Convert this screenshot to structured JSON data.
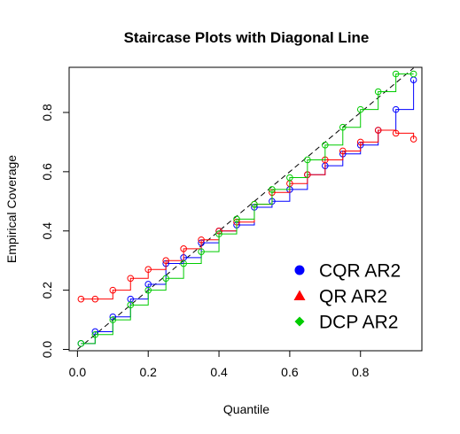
{
  "chart_data": {
    "type": "line",
    "title": "Staircase Plots with Diagonal Line",
    "xlabel": "Quantile",
    "ylabel": "Empirical Coverage",
    "xlim": [
      -0.0235,
      0.9735
    ],
    "ylim": [
      -0.0044,
      0.9524
    ],
    "xticks": [
      0.0,
      0.2,
      0.4,
      0.6,
      0.8
    ],
    "xtick_labels": [
      "0.0",
      "0.2",
      "0.4",
      "0.6",
      "0.8"
    ],
    "yticks": [
      0.0,
      0.2,
      0.4,
      0.6,
      0.8
    ],
    "ytick_labels": [
      "0.0",
      "0.2",
      "0.4",
      "0.6",
      "0.8"
    ],
    "grid": false,
    "legend_position": "bottom-right",
    "diagonal": {
      "style": "dashed",
      "color": "#000000",
      "x": [
        0,
        0.95
      ],
      "y": [
        0,
        0.95
      ]
    },
    "x": [
      0.01,
      0.05,
      0.1,
      0.15,
      0.2,
      0.25,
      0.3,
      0.35,
      0.4,
      0.45,
      0.5,
      0.55,
      0.6,
      0.65,
      0.7,
      0.75,
      0.8,
      0.85,
      0.9,
      0.95
    ],
    "series": [
      {
        "name": "CQR AR2",
        "color": "#0000ff",
        "legend_marker": "circle",
        "values": [
          0.02,
          0.06,
          0.11,
          0.17,
          0.22,
          0.29,
          0.31,
          0.36,
          0.4,
          0.42,
          0.48,
          0.5,
          0.54,
          0.59,
          0.62,
          0.66,
          0.69,
          0.74,
          0.81,
          0.91
        ]
      },
      {
        "name": "QR AR2",
        "color": "#ff0000",
        "legend_marker": "triangle",
        "values": [
          0.17,
          0.17,
          0.2,
          0.24,
          0.27,
          0.3,
          0.34,
          0.37,
          0.4,
          0.43,
          0.49,
          0.53,
          0.56,
          0.59,
          0.64,
          0.67,
          0.7,
          0.74,
          0.73,
          0.71
        ]
      },
      {
        "name": "DCP AR2",
        "color": "#00cc00",
        "legend_marker": "diamond",
        "values": [
          0.02,
          0.05,
          0.1,
          0.15,
          0.2,
          0.24,
          0.29,
          0.33,
          0.39,
          0.44,
          0.49,
          0.54,
          0.58,
          0.64,
          0.69,
          0.75,
          0.81,
          0.87,
          0.93,
          0.93
        ]
      }
    ]
  }
}
